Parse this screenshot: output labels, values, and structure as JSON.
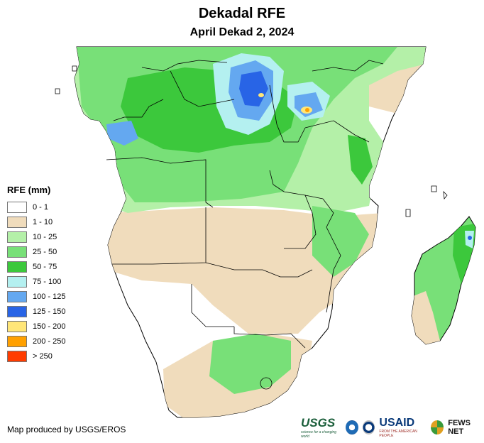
{
  "title": "Dekadal RFE",
  "subtitle": "April Dekad 2, 2024",
  "legend": {
    "title": "RFE (mm)",
    "items": [
      {
        "label": "0 - 1",
        "color": "#ffffff"
      },
      {
        "label": "1 - 10",
        "color": "#f0dcbc"
      },
      {
        "label": "10 - 25",
        "color": "#b4f0a8"
      },
      {
        "label": "25 - 50",
        "color": "#78e078"
      },
      {
        "label": "50 - 75",
        "color": "#3cc83c"
      },
      {
        "label": "75 - 100",
        "color": "#b4f0f0"
      },
      {
        "label": "100 - 125",
        "color": "#64a8f0"
      },
      {
        "label": "125 - 150",
        "color": "#2864e6"
      },
      {
        "label": "150 - 200",
        "color": "#ffe678"
      },
      {
        "label": "200 - 250",
        "color": "#ffa000"
      },
      {
        "label": "> 250",
        "color": "#ff3c00"
      }
    ]
  },
  "credit": "Map produced by USGS/EROS",
  "logos": {
    "usgs": "USGS",
    "usgs_tagline": "science for a changing world",
    "usaid": "USAID",
    "usaid_tagline": "FROM THE AMERICAN PEOPLE",
    "fews": "FEWS NET"
  }
}
